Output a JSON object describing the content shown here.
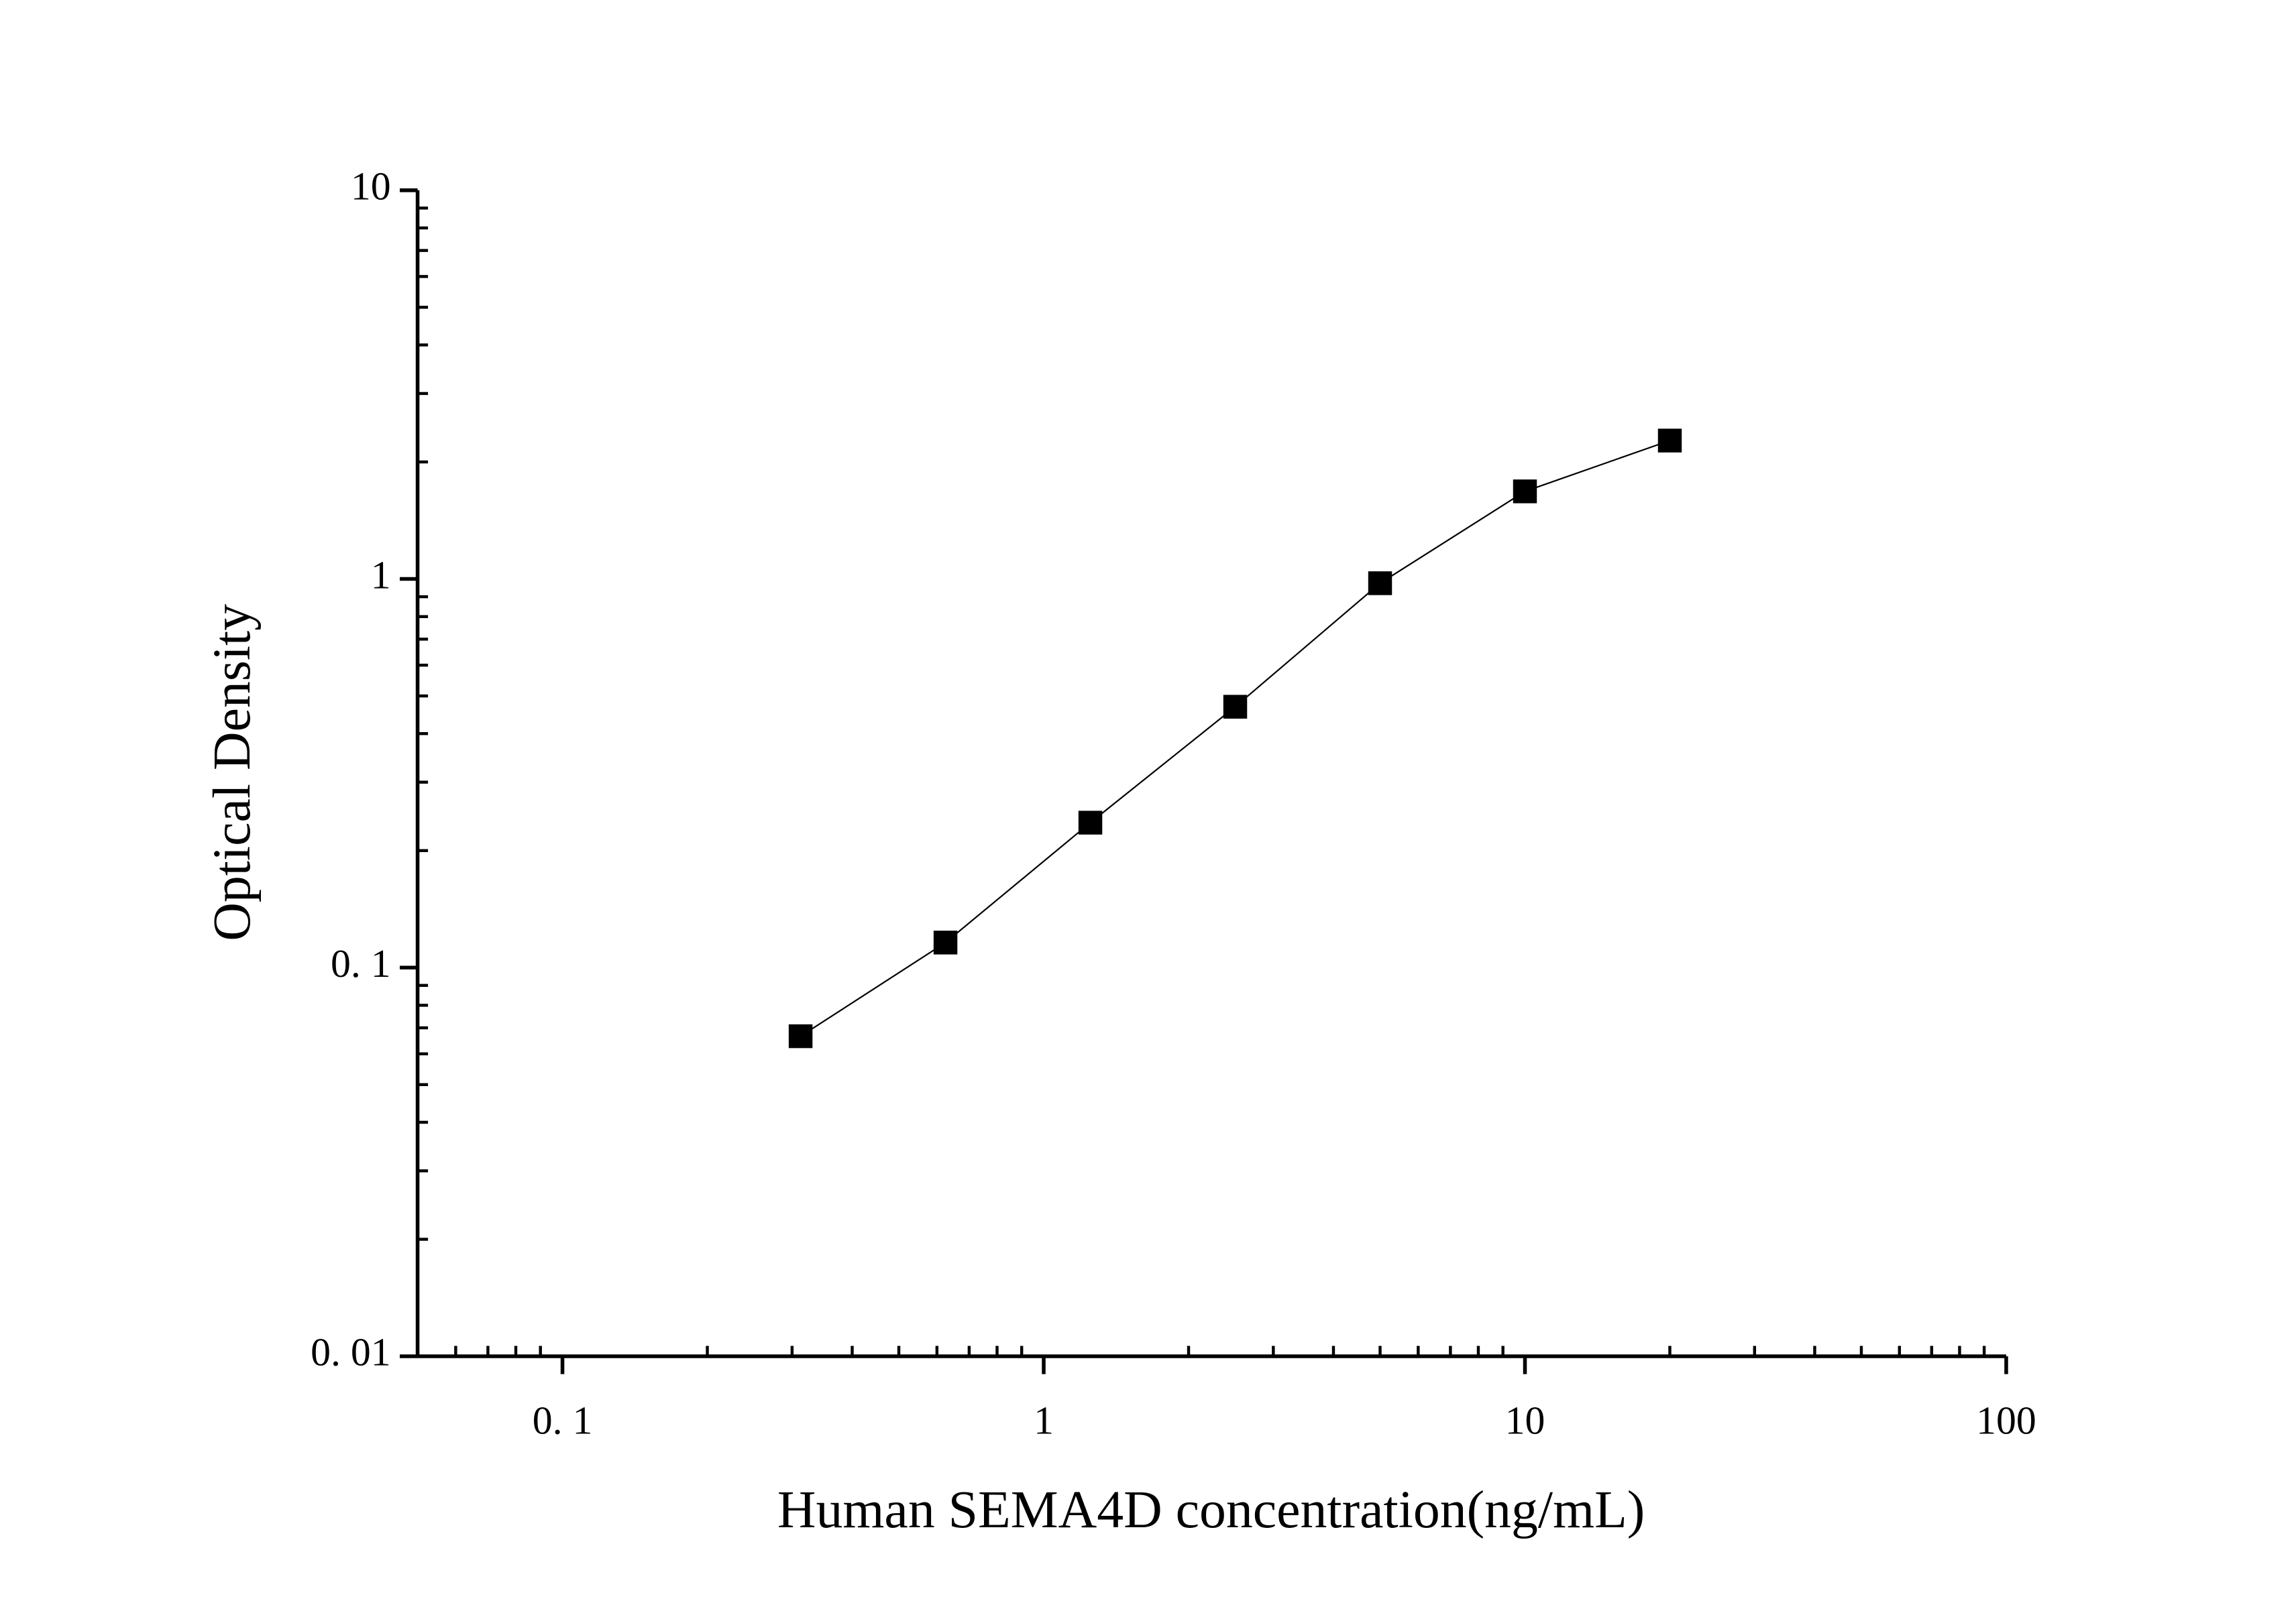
{
  "chart_data": {
    "type": "line",
    "x_label": "Human SEMA4D concentration(ng/mL)",
    "y_label": "Optical Density",
    "x": [
      0.3125,
      0.625,
      1.25,
      2.5,
      5,
      10,
      20
    ],
    "series": [
      {
        "color": "#000000",
        "values": [
          0.0666,
          0.116,
          0.236,
          0.469,
          0.975,
          1.68,
          2.27
        ]
      }
    ],
    "xlim": [
      0.05,
      100
    ],
    "ylim": [
      0.01,
      10
    ],
    "xticks": [
      {
        "value": 0.1,
        "label": "0. 1"
      },
      1,
      10,
      100
    ],
    "yticks": [
      {
        "value": 0.01,
        "label": "0. 01"
      },
      {
        "value": 0.1,
        "label": "0. 1"
      },
      1,
      10
    ],
    "xscale": "log",
    "yscale": "log",
    "minor_ticks": true,
    "marker": "square"
  }
}
